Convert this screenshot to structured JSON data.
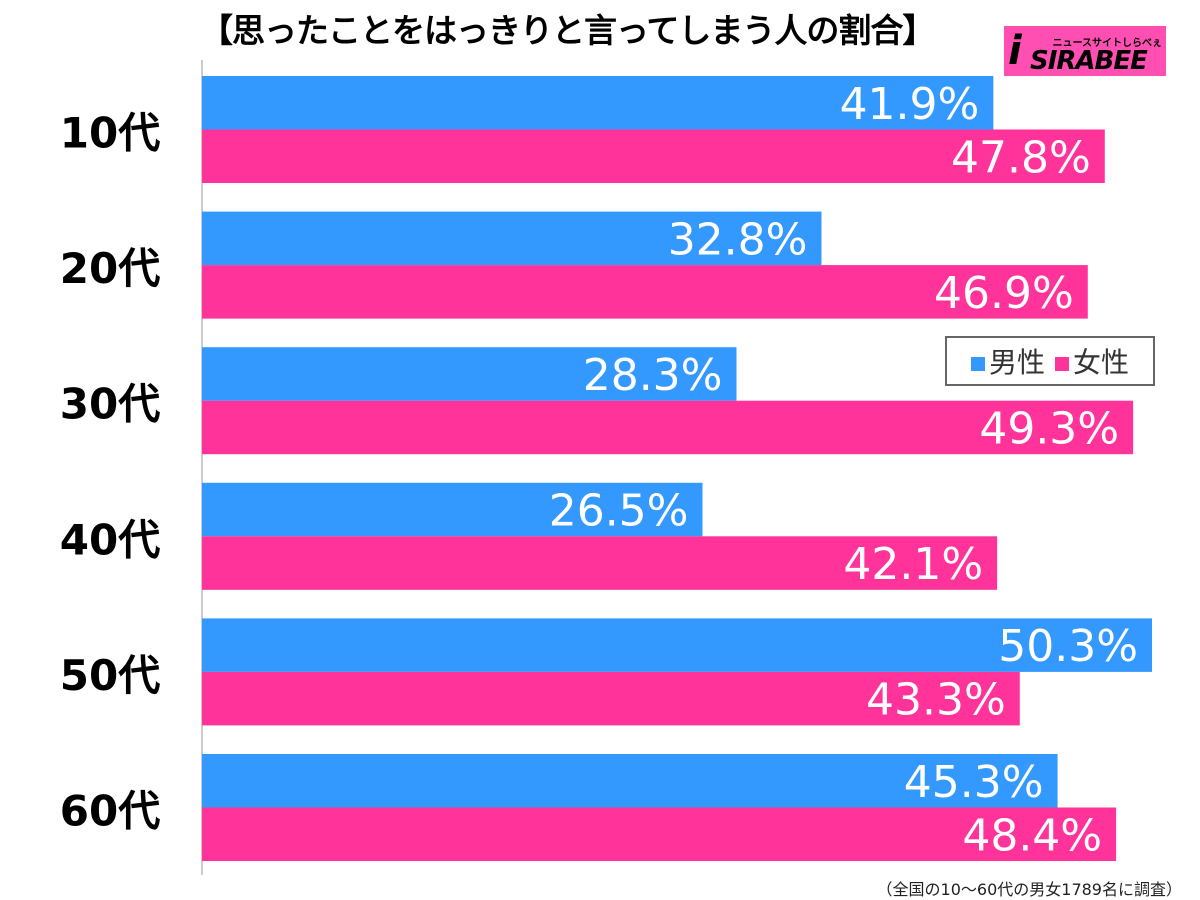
{
  "title": "【思ったことをはっきりと言ってしまう人の割合】",
  "logo": {
    "sub": "ニュースサイトしらべぇ",
    "main": "SIRABEE"
  },
  "footnote": "（全国の10〜60代の男女1789名に調査）",
  "chart_data": {
    "type": "bar",
    "orientation": "horizontal",
    "title": "【思ったことをはっきりと言ってしまう人の割合】",
    "categories": [
      "10代",
      "20代",
      "30代",
      "40代",
      "50代",
      "60代"
    ],
    "series": [
      {
        "name": "男性",
        "color": "#3399ff",
        "values": [
          41.9,
          32.8,
          28.3,
          26.5,
          50.3,
          45.3
        ]
      },
      {
        "name": "女性",
        "color": "#ff3399",
        "values": [
          47.8,
          46.9,
          49.3,
          42.1,
          43.3,
          48.4
        ]
      }
    ],
    "unit": "%",
    "xlim": [
      0,
      50.3
    ],
    "legend": "right-middle",
    "grid": false
  }
}
